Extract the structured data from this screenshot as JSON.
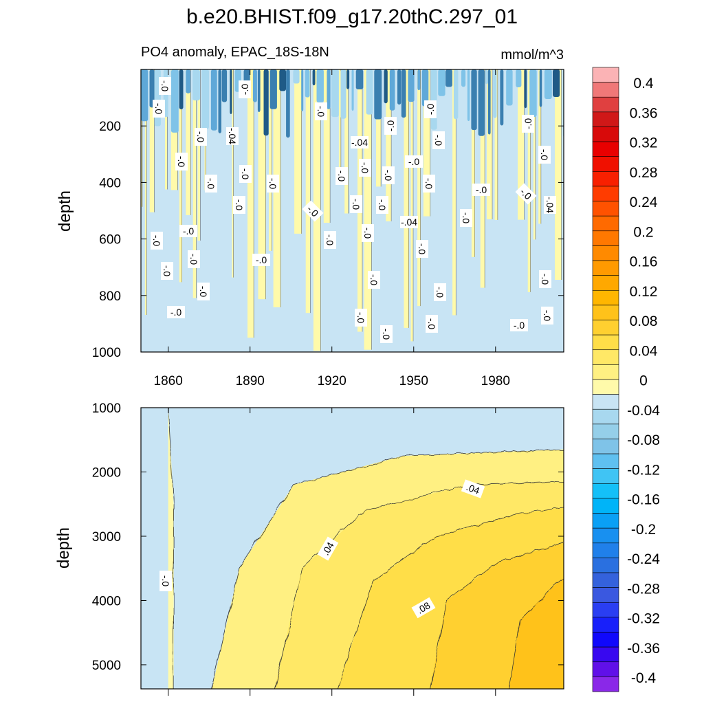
{
  "figure": {
    "title": "b.e20.BHIST.f09_g17.20thC.297_01",
    "subtitle_left": "PO4 anomaly, EPAC_18S-18N",
    "subtitle_right": "mmol/m^3"
  },
  "chart_data": [
    {
      "type": "heatmap",
      "panel": "upper",
      "variable": "PO4 anomaly",
      "units": "mmol/m^3",
      "ylabel": "depth",
      "xlabel": "",
      "x_ticks": [
        1860,
        1890,
        1920,
        1950,
        1980
      ],
      "xlim": [
        1850,
        2005
      ],
      "y_ticks": [
        200,
        400,
        600,
        800,
        1000
      ],
      "ylim": [
        0,
        1000
      ],
      "y_inverted": true,
      "background_level": "-0.04 to 0",
      "description": "Noisy near-zero anomalies with strongest negative values (down to about -0.2) in the top 150 m, yellow (0 to 0.04) vertical streaks extending to depth.",
      "contour_labels": [
        "-.0",
        "-.0",
        "-.04",
        "-.0",
        "-.0",
        "-.04",
        "-.0",
        "-.0",
        "-.0",
        "-.0",
        "-.0",
        "-.04",
        "-.0",
        "-.0",
        "-.0",
        "-.0",
        "-.0",
        "-.0",
        "-.0",
        "-.0",
        "-.0",
        "-.0",
        "-.0",
        "-.0",
        "-.0",
        "-.0",
        "-.0",
        "-.04",
        "-.0",
        "-.04",
        "-.0",
        "-.0",
        "-.0",
        "-.0",
        "-.0",
        "-.0",
        "-.0",
        "-.0",
        "-.0",
        "-.0",
        "-.0",
        "-.0",
        "-.0",
        "-.0",
        "-.0",
        "-.0",
        "-.0",
        "-.0",
        "-.0",
        "-.0",
        "-.0",
        "-.0"
      ]
    },
    {
      "type": "heatmap",
      "panel": "lower",
      "variable": "PO4 anomaly",
      "units": "mmol/m^3",
      "ylabel": "depth",
      "xlabel": "",
      "y_ticks": [
        1000,
        2000,
        3000,
        4000,
        5000
      ],
      "ylim": [
        1000,
        5375
      ],
      "y_inverted": true,
      "description": "Anomaly increases with time and depth; near -0.0 before 1860, rising to above 0.08 at 4000-5000 m after 1980.",
      "contours": [
        {
          "level": 0.0,
          "points": [
            [
              1860,
              1000
            ],
            [
              1862,
              2500
            ],
            [
              1862,
              5375
            ]
          ]
        },
        {
          "level": 0.02,
          "points": [
            [
              1876,
              5375
            ],
            [
              1886,
              3500
            ],
            [
              1906,
              2200
            ],
            [
              1946,
              1750
            ],
            [
              2005,
              1650
            ]
          ]
        },
        {
          "level": 0.04,
          "points": [
            [
              1899,
              5375
            ],
            [
              1909,
              3500
            ],
            [
              1932,
              2600
            ],
            [
              1970,
              2200
            ],
            [
              2005,
              2150
            ]
          ]
        },
        {
          "level": 0.06,
          "points": [
            [
              1922,
              5375
            ],
            [
              1935,
              3700
            ],
            [
              1958,
              3000
            ],
            [
              1988,
              2650
            ],
            [
              2005,
              2550
            ]
          ]
        },
        {
          "level": 0.08,
          "points": [
            [
              1956,
              5375
            ],
            [
              1962,
              4000
            ],
            [
              1981,
              3400
            ],
            [
              2005,
              3100
            ]
          ]
        },
        {
          "level": 0.1,
          "points": [
            [
              1985,
              5375
            ],
            [
              1989,
              4300
            ],
            [
              2002,
              3750
            ],
            [
              2005,
              3650
            ]
          ]
        }
      ],
      "contour_labels": [
        "-.0",
        ".04",
        ".04",
        ".08"
      ]
    }
  ],
  "colorbar": {
    "labels": [
      "0.4",
      "0.36",
      "0.32",
      "0.28",
      "0.24",
      "0.2",
      "0.16",
      "0.12",
      "0.08",
      "0.04",
      "0",
      "-0.04",
      "-0.08",
      "-0.12",
      "-0.16",
      "-0.2",
      "-0.24",
      "-0.28",
      "-0.32",
      "-0.36",
      "-0.4"
    ],
    "colors": [
      "#fbb3b5",
      "#f07878",
      "#e04040",
      "#d01818",
      "#d80a0a",
      "#e80000",
      "#f01000",
      "#f82000",
      "#ff3c00",
      "#ff5200",
      "#ff6a00",
      "#ff7800",
      "#ff8a00",
      "#ff9a00",
      "#ffa800",
      "#ffb600",
      "#ffc21a",
      "#ffd030",
      "#ffde48",
      "#ffe866",
      "#fff082",
      "#fffaaa",
      "#c8e4f4",
      "#a8d8ef",
      "#95cfe9",
      "#7fc3e8",
      "#5fc0f0",
      "#40c4f4",
      "#14c0f8",
      "#00b4f8",
      "#0aa0f5",
      "#1890f0",
      "#2080ea",
      "#2a70e0",
      "#3462dc",
      "#3a58e0",
      "#2a3ef2",
      "#1820fa",
      "#1008fc",
      "#3808f0",
      "#6010e8",
      "#8a28e8"
    ]
  }
}
